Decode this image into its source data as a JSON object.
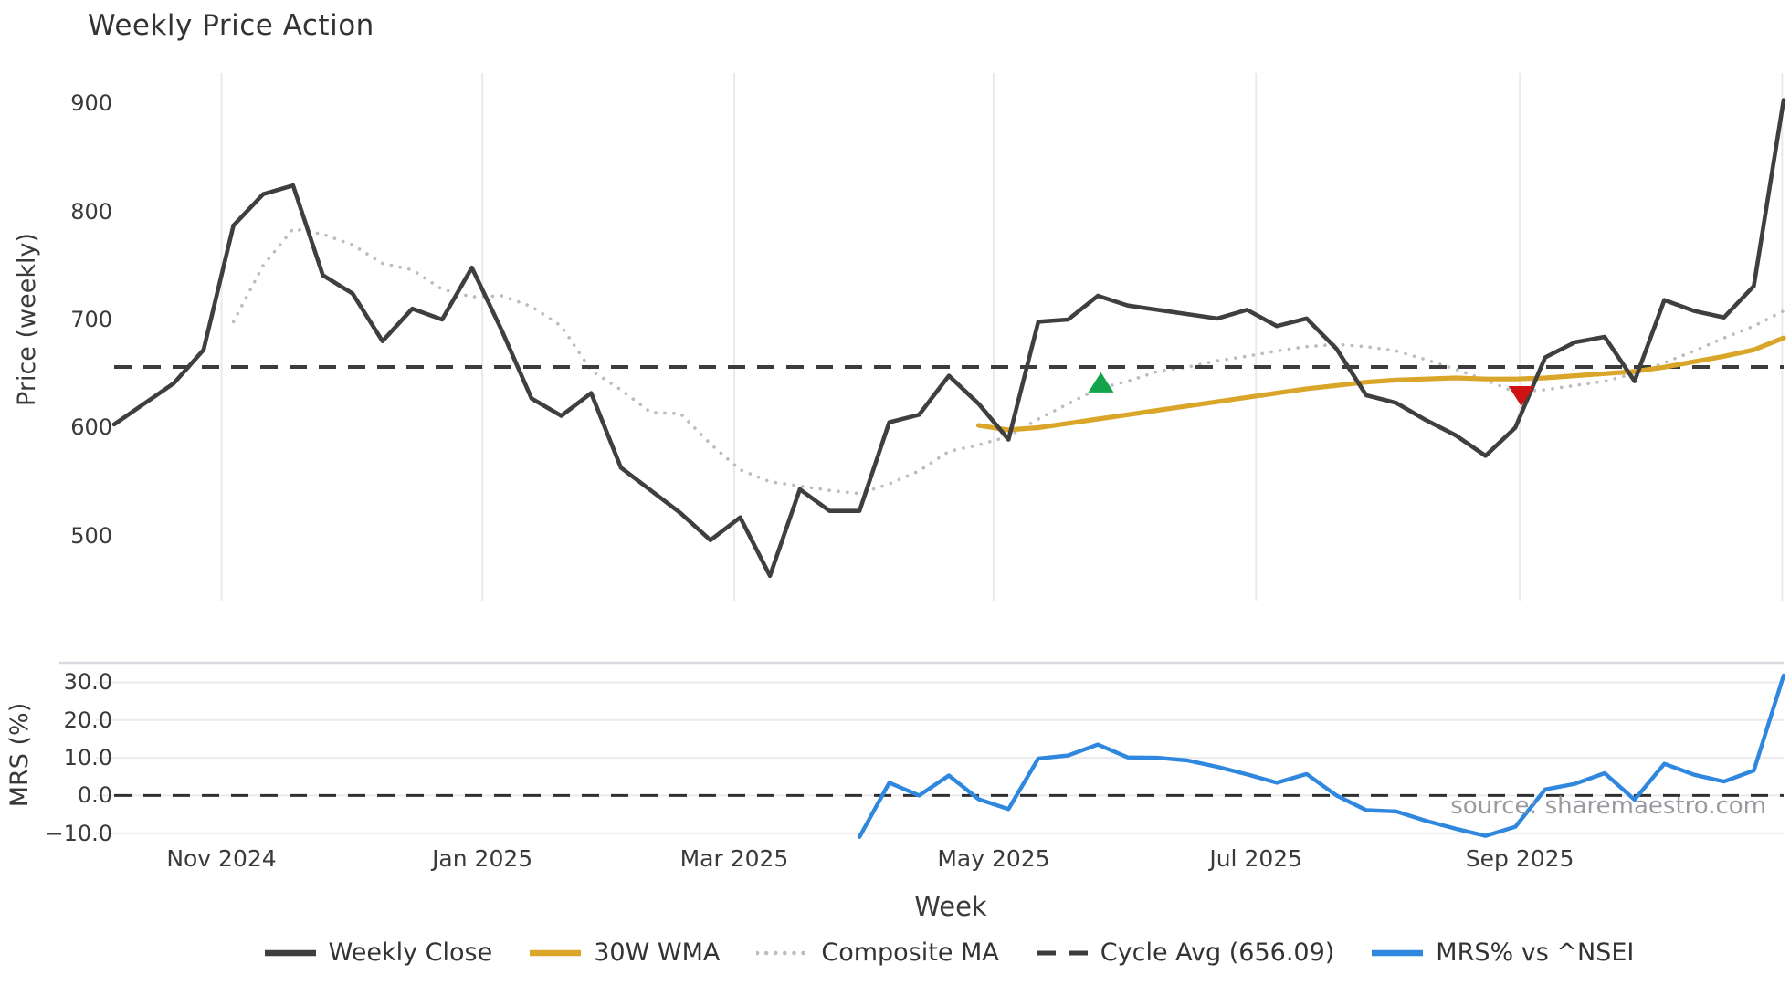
{
  "title": "Weekly Price Action",
  "source": "source: sharemaestro.com",
  "xlabel": "Week",
  "legend": [
    {
      "label": "Weekly Close",
      "color": "#3f3f3f",
      "style": "solid"
    },
    {
      "label": "30W WMA",
      "color": "#d9a62a",
      "style": "solid"
    },
    {
      "label": "Composite MA",
      "color": "#bcbcbc",
      "style": "dotted"
    },
    {
      "label": "Cycle Avg (656.09)",
      "color": "#3c3c3c",
      "style": "dashed"
    },
    {
      "label": "MRS% vs ^NSEI",
      "color": "#2f87de",
      "style": "solid"
    }
  ],
  "chart_data": [
    {
      "type": "line",
      "panel": "price",
      "title": "Weekly Price Action",
      "ylabel": "Price (weekly)",
      "ylim": [
        440,
        928
      ],
      "grid": "vertical-months",
      "y_ticks": [
        {
          "label": "900",
          "value": 900
        },
        {
          "label": "800",
          "value": 800
        },
        {
          "label": "700",
          "value": 700
        },
        {
          "label": "600",
          "value": 600
        },
        {
          "label": "500",
          "value": 500
        }
      ],
      "x_ticks": [
        {
          "label": "Nov 2024",
          "index": 3.6
        },
        {
          "label": "Jan 2025",
          "index": 12.35
        },
        {
          "label": "Mar 2025",
          "index": 20.8
        },
        {
          "label": "May 2025",
          "index": 29.5
        },
        {
          "label": "Jul 2025",
          "index": 38.3
        },
        {
          "label": "Sep 2025",
          "index": 47.15
        },
        {
          "label": "",
          "index": 55.95
        }
      ],
      "cycle_avg": 656.09,
      "series": [
        {
          "name": "Weekly Close",
          "style": "solid",
          "color": "#3f3f3f",
          "width": 4.6,
          "start_index": 0,
          "values": [
            603,
            622,
            641,
            672,
            787,
            816,
            824,
            741,
            724,
            680,
            710,
            700,
            748,
            690,
            627,
            611,
            632,
            563,
            542,
            521,
            496,
            517,
            463,
            543,
            523,
            523,
            605,
            612,
            648,
            622,
            589,
            698,
            700,
            722,
            713,
            709,
            705,
            701,
            709,
            694,
            701,
            673,
            630,
            623,
            607,
            593,
            574,
            600,
            665,
            679,
            684,
            643,
            718,
            708,
            702,
            731,
            903
          ]
        },
        {
          "name": "30W WMA",
          "style": "solid",
          "color": "#d9a62a",
          "width": 5.2,
          "start_index": 29,
          "values": [
            602,
            598,
            600,
            604,
            608,
            612,
            616,
            620,
            624,
            628,
            632,
            636,
            639,
            642,
            644,
            645,
            646,
            645,
            645,
            646,
            648,
            650,
            652,
            656,
            661,
            666,
            672,
            683
          ]
        },
        {
          "name": "Composite MA",
          "style": "dotted",
          "color": "#bcbcbc",
          "width": 3.6,
          "start_index": 4,
          "values": [
            698,
            750,
            784,
            779,
            769,
            752,
            746,
            728,
            721,
            722,
            712,
            694,
            653,
            635,
            614,
            613,
            585,
            561,
            550,
            546,
            542,
            539,
            548,
            560,
            578,
            584,
            592,
            608,
            622,
            636,
            643,
            652,
            656,
            662,
            666,
            671,
            675,
            677,
            675,
            671,
            663,
            654,
            644,
            633,
            635,
            639,
            643,
            650,
            660,
            671,
            683,
            694,
            708
          ]
        }
      ],
      "markers": [
        {
          "shape": "triangle-up",
          "color": "#12a34b",
          "index": 33.1,
          "value": 641
        },
        {
          "shape": "triangle-down",
          "color": "#cf1212",
          "index": 47.2,
          "value": 630
        }
      ]
    },
    {
      "type": "line",
      "panel": "mrs",
      "ylabel": "MRS (%)",
      "xlabel": "Week",
      "ylim": [
        -13.7,
        35.2
      ],
      "grid": "horizontal",
      "zero_line": 0,
      "y_ticks": [
        {
          "label": "30.0",
          "value": 30
        },
        {
          "label": "20.0",
          "value": 20
        },
        {
          "label": "10.0",
          "value": 10
        },
        {
          "label": "0.0",
          "value": 0
        },
        {
          "label": "−10.0",
          "value": -10
        }
      ],
      "series": [
        {
          "name": "MRS% vs ^NSEI",
          "style": "solid",
          "color": "#2f87de",
          "width": 4.4,
          "start_index": 25,
          "values": [
            -11,
            3.4,
            0,
            5.3,
            -1,
            -3.6,
            9.8,
            10.6,
            13.5,
            10.1,
            10,
            9.3,
            7.6,
            5.6,
            3.4,
            5.7,
            0,
            -3.9,
            -4.2,
            -6.7,
            -8.8,
            -10.7,
            -8.3,
            1.6,
            3.1,
            5.9,
            -1.1,
            8.4,
            5.5,
            3.7,
            6.6,
            31.8
          ]
        }
      ]
    }
  ],
  "style": {
    "grid_color": "#e9eaf1",
    "grid_color_h": "#eaeaef",
    "panel_border_color": "#d9dae0",
    "zero_line_color": "#303030",
    "cycle_line_color": "#3c3c3c"
  }
}
